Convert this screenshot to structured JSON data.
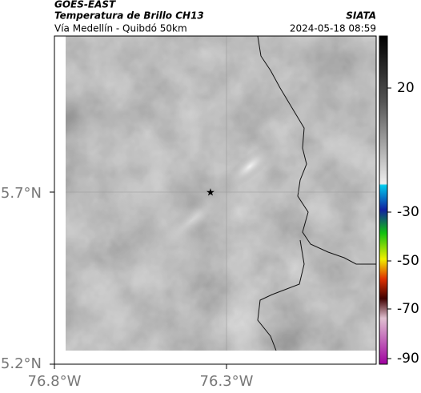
{
  "header": {
    "source": "GOES-EAST",
    "title": "Temperatura de Brillo CH13",
    "subtitle": "Vía Medellín - Quibdó 50km",
    "agency": "SIATA",
    "timestamp": "2024-05-18 08:59"
  },
  "axes": {
    "lat_labels": [
      "5.7°N",
      "5.2°N"
    ],
    "lon_labels": [
      "76.8°W",
      "76.3°W"
    ]
  },
  "colorbar": {
    "tick_labels": [
      "20",
      "-30",
      "-50",
      "-70",
      "-90"
    ]
  }
}
